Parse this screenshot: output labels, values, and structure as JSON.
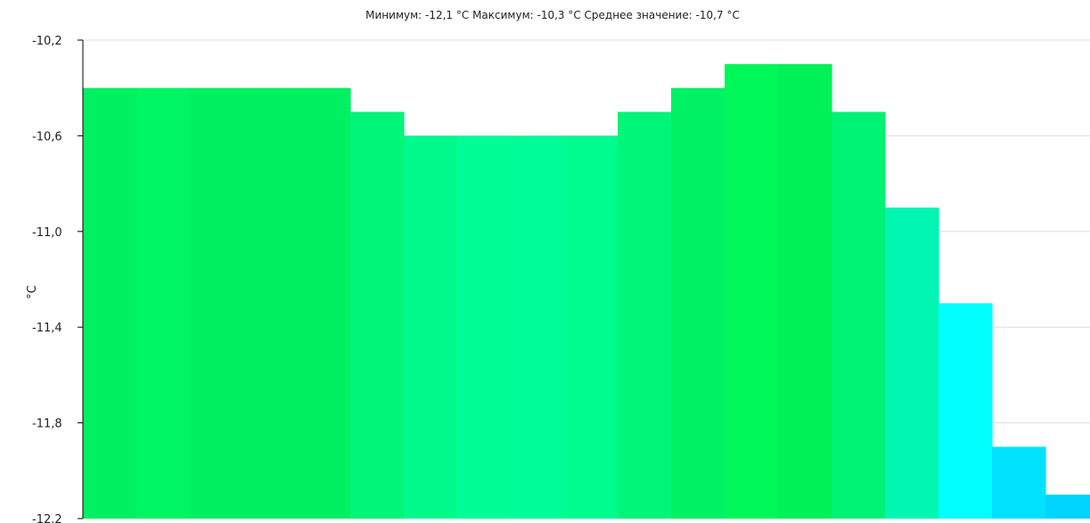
{
  "chart_data": {
    "type": "bar",
    "title": "Минимум:  -12,1  °C Максимум:  -10,3  °C Среднее значение:  -10,7  °C",
    "ylabel": "°C",
    "xlabel": "",
    "ylim": [
      -12.2,
      -10.2
    ],
    "yticks": [
      "-10,2",
      "-10,6",
      "-11,0",
      "-11,4",
      "-11,8",
      "-12.2"
    ],
    "ytick_values": [
      -10.2,
      -10.6,
      -11.0,
      -11.4,
      -11.8,
      -12.2
    ],
    "grid": true,
    "values": [
      -10.4,
      -10.4,
      -10.4,
      -10.4,
      -10.4,
      -10.5,
      -10.6,
      -10.6,
      -10.6,
      -10.6,
      -10.5,
      -10.4,
      -10.3,
      -10.3,
      -10.5,
      -10.9,
      -11.3,
      -11.9,
      -12.1
    ],
    "colors": [
      "#00f061",
      "#00f563",
      "#00f061",
      "#00f061",
      "#00f061",
      "#00f579",
      "#00fa8c",
      "#00fc94",
      "#00fc97",
      "#00fb8f",
      "#00f579",
      "#00f264",
      "#00f758",
      "#00f158",
      "#00f275",
      "#00f6b2",
      "#00ffff",
      "#00e2ff",
      "#00d4ff"
    ]
  }
}
